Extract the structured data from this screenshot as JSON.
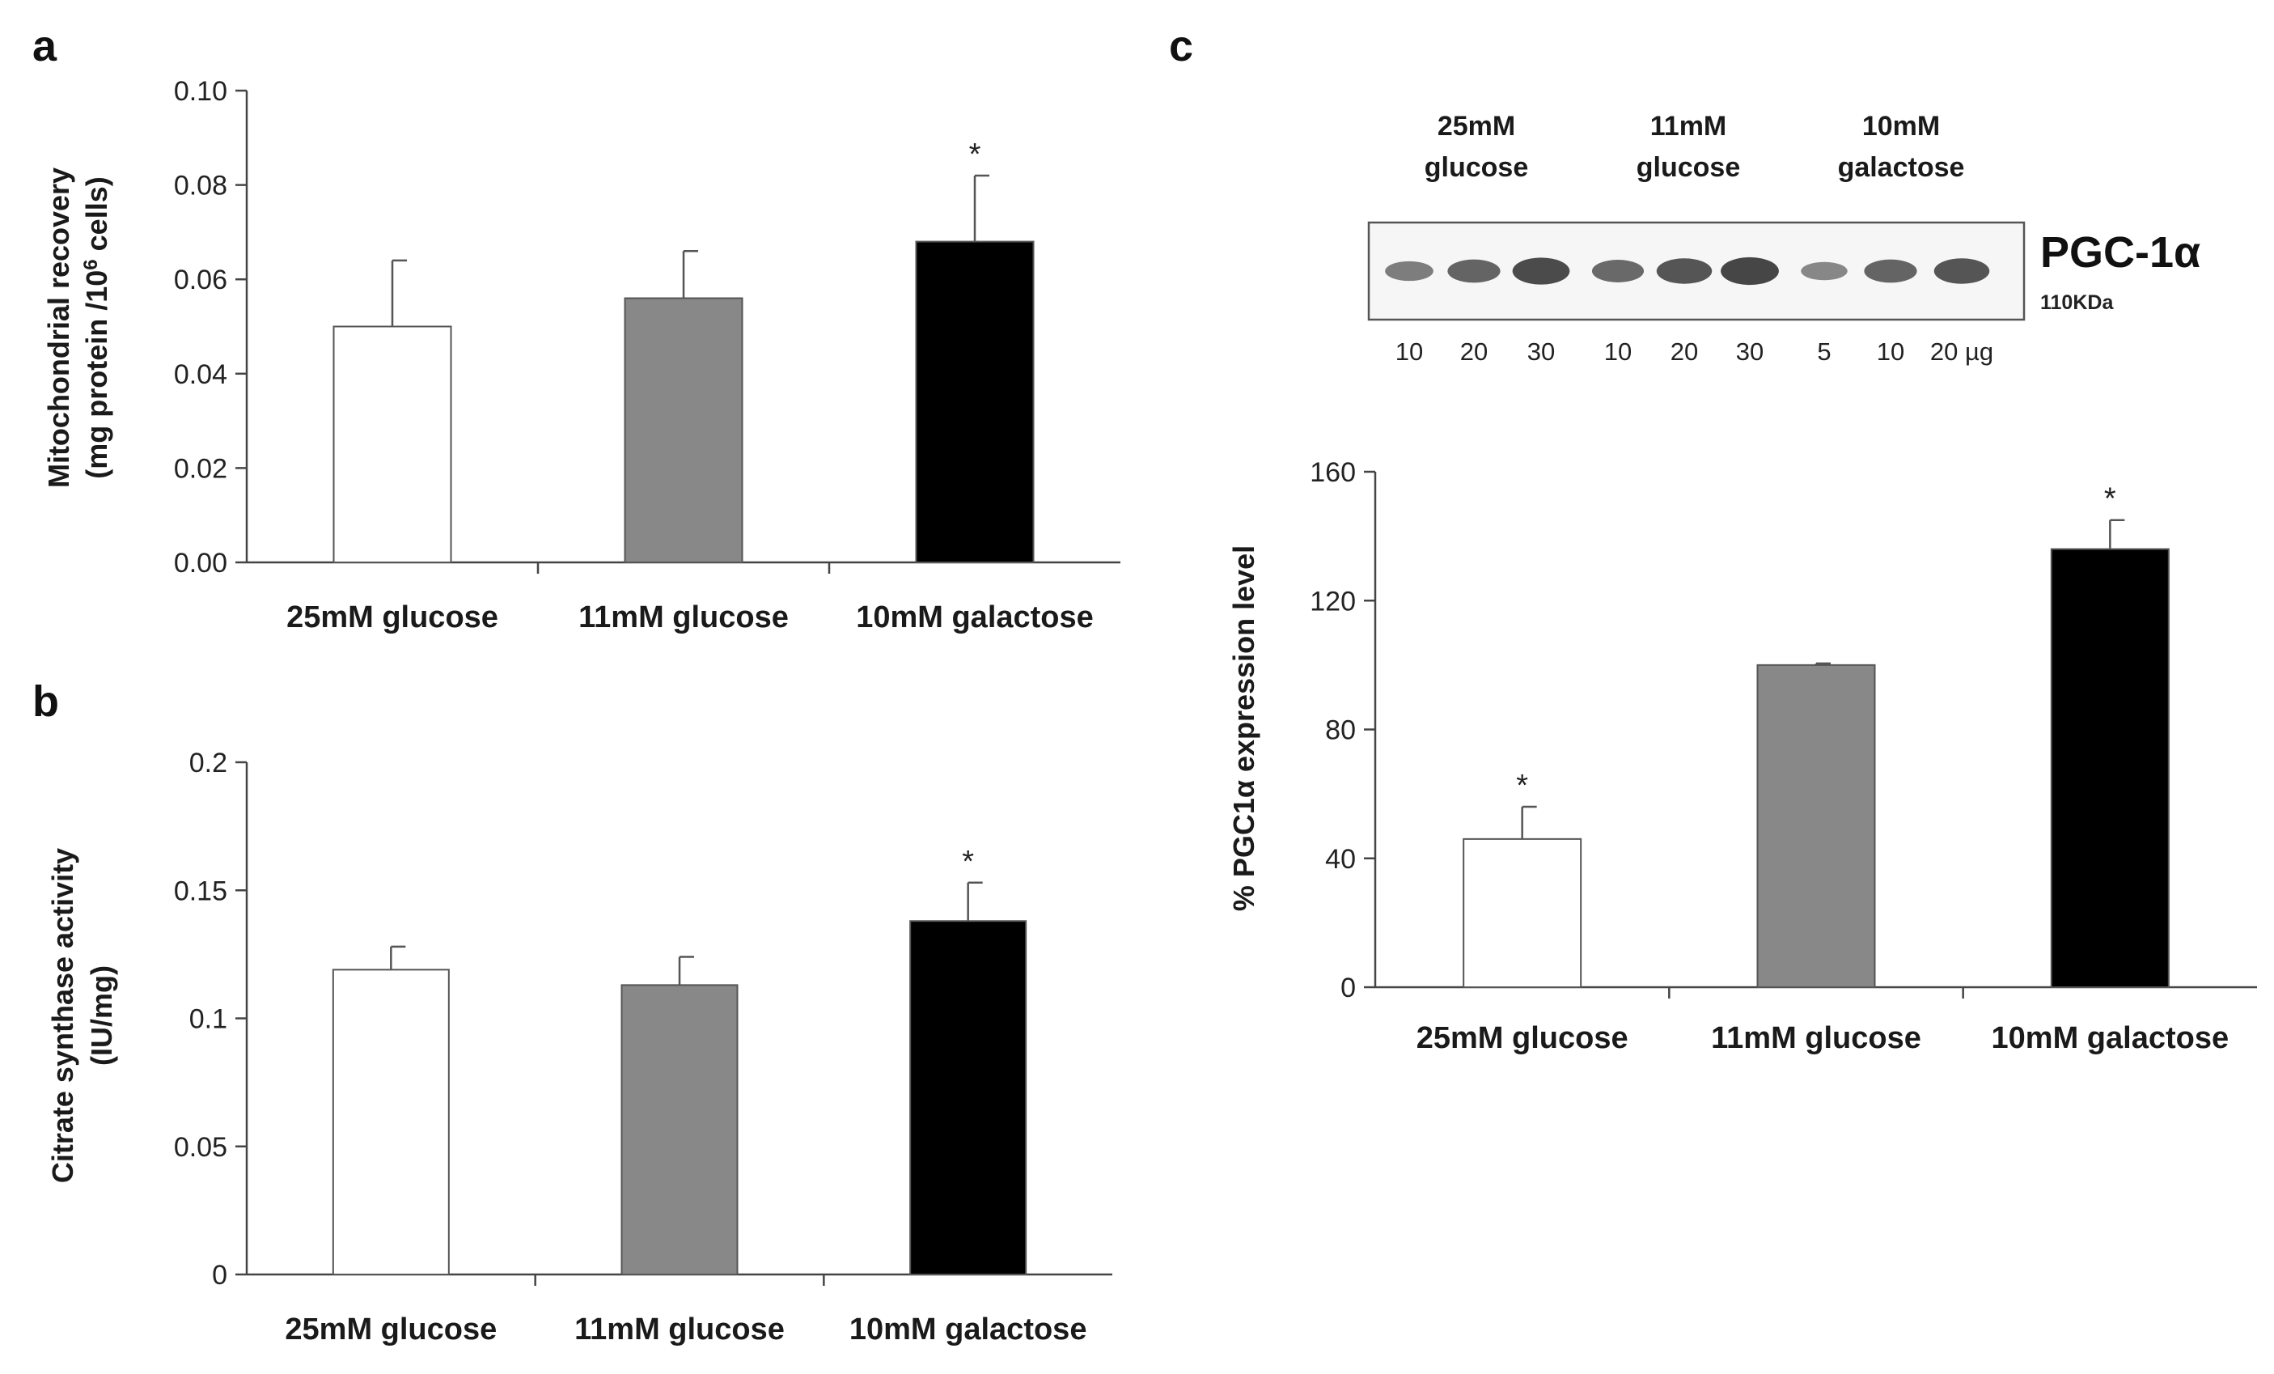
{
  "chart_data": [
    {
      "panel": "a",
      "type": "bar",
      "categories": [
        "25mM glucose",
        "11mM glucose",
        "10mM galactose"
      ],
      "values": [
        0.05,
        0.056,
        0.068
      ],
      "errors": [
        0.014,
        0.01,
        0.014
      ],
      "significance": [
        "",
        "",
        "*"
      ],
      "colors": [
        "#ffffff",
        "#888888",
        "#000000"
      ],
      "ylabel_line1": "Mitochondrial recovery",
      "ylabel_line2_prefix": "(mg protein /10",
      "ylabel_sup": "6",
      "ylabel_line2_suffix": " cells)",
      "ylim": [
        0,
        0.1
      ],
      "yticks": [
        "0.00",
        "0.02",
        "0.04",
        "0.06",
        "0.08",
        "0.10"
      ],
      "grid": false
    },
    {
      "panel": "b",
      "type": "bar",
      "categories": [
        "25mM glucose",
        "11mM glucose",
        "10mM galactose"
      ],
      "values": [
        0.119,
        0.113,
        0.138
      ],
      "errors": [
        0.009,
        0.011,
        0.015
      ],
      "significance": [
        "",
        "",
        "*"
      ],
      "colors": [
        "#ffffff",
        "#888888",
        "#000000"
      ],
      "ylabel_line1": "Citrate synthase activity",
      "ylabel_line2": "(IU/mg)",
      "ylim": [
        0,
        0.2
      ],
      "yticks": [
        "0",
        "0.05",
        "0.1",
        "0.15",
        "0.2"
      ],
      "grid": false
    },
    {
      "panel": "c",
      "type": "bar",
      "categories": [
        "25mM glucose",
        "11mM glucose",
        "10mM galactose"
      ],
      "values": [
        46,
        100,
        136
      ],
      "errors": [
        10,
        0.5,
        9
      ],
      "significance": [
        "*",
        "",
        "*"
      ],
      "colors": [
        "#ffffff",
        "#888888",
        "#000000"
      ],
      "ylabel": "% PGC1α expression level",
      "ylim": [
        0,
        160
      ],
      "yticks": [
        "0",
        "40",
        "80",
        "120",
        "160"
      ],
      "grid": false
    }
  ],
  "blot": {
    "groups": [
      {
        "line1": "25mM",
        "line2": "glucose"
      },
      {
        "line1": "11mM",
        "line2": "glucose"
      },
      {
        "line1": "10mM",
        "line2": "galactose"
      }
    ],
    "lanes": [
      "10",
      "20",
      "30",
      "10",
      "20",
      "30",
      "5",
      "10",
      "20 µg"
    ],
    "band_intensity": [
      0.35,
      0.6,
      0.85,
      0.55,
      0.75,
      0.9,
      0.25,
      0.6,
      0.75
    ],
    "protein": "PGC-1α",
    "size": "110KDa"
  }
}
